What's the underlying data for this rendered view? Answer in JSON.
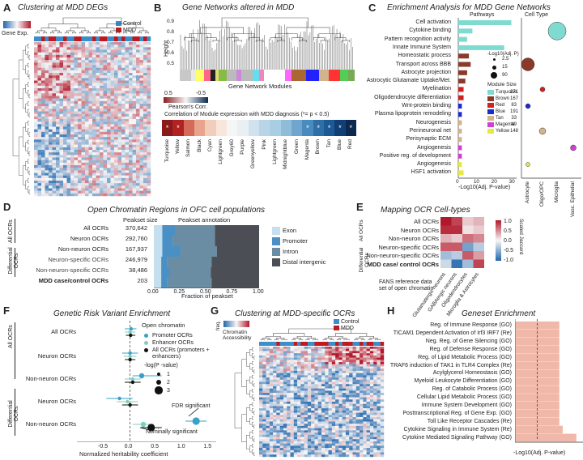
{
  "panels": {
    "A": {
      "letter": "A",
      "title": "Clustering at MDD DEGs",
      "legend_label": "Gene Exp.",
      "groups": [
        "Control",
        "MDD"
      ]
    },
    "B": {
      "letter": "B",
      "title": "Gene Networks altered in MDD",
      "height_label": "Height",
      "height_ticks": [
        "0.9",
        "0.8",
        "0.7",
        "0.6",
        "0.5"
      ],
      "modules_label": "Gene Network Modules",
      "corr_ticks": [
        "0.5",
        "-0.5"
      ],
      "corr_label": "Pearson's Corr.",
      "corr_title": "Correlation of Module expression with MDD diagnosis (*= p < 0.5)",
      "modules": [
        {
          "name": "Turquoise",
          "color": "#8b1a1a",
          "sig": true
        },
        {
          "name": "Yellow",
          "color": "#b22222",
          "sig": true
        },
        {
          "name": "Salmon",
          "color": "#d46a5a",
          "sig": false
        },
        {
          "name": "Black",
          "color": "#e8a48c",
          "sig": false
        },
        {
          "name": "Cyan",
          "color": "#f3cdbb",
          "sig": false
        },
        {
          "name": "Lightgreen",
          "color": "#f7e6dc",
          "sig": false
        },
        {
          "name": "Grey60",
          "color": "#f5f5f5",
          "sig": false
        },
        {
          "name": "Purple",
          "color": "#e8f0f4",
          "sig": false
        },
        {
          "name": "Greenyellow",
          "color": "#cfe2ee",
          "sig": false
        },
        {
          "name": "Pink",
          "color": "#b8d5e8",
          "sig": false
        },
        {
          "name": "Lightgreen",
          "color": "#a9cde3",
          "sig": false
        },
        {
          "name": "Midnightblue",
          "color": "#8fbcd9",
          "sig": false
        },
        {
          "name": "Green",
          "color": "#6ea6cd",
          "sig": false
        },
        {
          "name": "Magenta",
          "color": "#4a8bbf",
          "sig": true
        },
        {
          "name": "Brown",
          "color": "#2f6fa8",
          "sig": true
        },
        {
          "name": "Tan",
          "color": "#1d5a95",
          "sig": true
        },
        {
          "name": "Blue",
          "color": "#123f73",
          "sig": true
        },
        {
          "name": "Red",
          "color": "#0a2850",
          "sig": true
        }
      ]
    },
    "C": {
      "letter": "C",
      "title": "Enrichment Analysis for MDD Gene Networks",
      "col1": "Pathways",
      "col2": "Cell Type",
      "xlabel": "-Log10(Adj. P-value)",
      "xticks": [
        "0",
        "10",
        "20",
        "30"
      ],
      "rows": [
        {
          "label": "Cell activation",
          "module": "Turquoise",
          "value": 30
        },
        {
          "label": "Cytokine binding",
          "module": "Turquoise",
          "value": 8
        },
        {
          "label": "Pattern recognition activity",
          "module": "Turquoise",
          "value": 5
        },
        {
          "label": "Innate Immune System",
          "module": "Turquoise",
          "value": 26
        },
        {
          "label": "Homeostatic process",
          "module": "Brown",
          "value": 6
        },
        {
          "label": "Transport across BBB",
          "module": "Brown",
          "value": 7
        },
        {
          "label": "Astrocyte projection",
          "module": "Brown",
          "value": 5
        },
        {
          "label": "Astrocytic Glutamate Uptake/Met.",
          "module": "Brown",
          "value": 4
        },
        {
          "label": "Myelination",
          "module": "Red",
          "value": 3
        },
        {
          "label": "Oligodendrocyte differentiation",
          "module": "Red",
          "value": 3
        },
        {
          "label": "Wnt-protein binding",
          "module": "Blue",
          "value": 2
        },
        {
          "label": "Plasma lipoprotein remodeling",
          "module": "Blue",
          "value": 2
        },
        {
          "label": "Neurogenesis",
          "module": "Tan",
          "value": 2
        },
        {
          "label": "Perineuronal net",
          "module": "Tan",
          "value": 2
        },
        {
          "label": "Perisynaptic ECM",
          "module": "Tan",
          "value": 2
        },
        {
          "label": "Angiogenesis",
          "module": "Magenta",
          "value": 2
        },
        {
          "label": "Positive reg. of development",
          "module": "Magenta",
          "value": 2
        },
        {
          "label": "Angiogenesis",
          "module": "Yellow",
          "value": 2
        },
        {
          "label": "HSF1 activation",
          "module": "Yellow",
          "value": 3
        }
      ],
      "size_legend_title": "-Log10(Adj. P)",
      "size_legend": [
        "2.5",
        "15",
        "90"
      ],
      "module_size_title": "Module Size",
      "module_sizes": [
        {
          "name": "Turquoise",
          "color": "#7fdbd0",
          "size": "271"
        },
        {
          "name": "Brown",
          "color": "#8b3a2a",
          "size": "167"
        },
        {
          "name": "Red",
          "color": "#d02020",
          "size": "83"
        },
        {
          "name": "Blue",
          "color": "#1a2ad0",
          "size": "191"
        },
        {
          "name": "Tan",
          "color": "#d2b48c",
          "size": "33"
        },
        {
          "name": "Magenta",
          "color": "#d040d0",
          "size": "49"
        },
        {
          "name": "Yellow",
          "color": "#e8e840",
          "size": "148"
        }
      ],
      "cell_types": [
        "Astrocyte",
        "Oligo/OPC",
        "Microglia",
        "Vasc. Epithelial"
      ]
    },
    "D": {
      "letter": "D",
      "title": "Open Chromatin Regions in OFC cell populations",
      "col1": "Peakset size",
      "col2": "Peakset annotation",
      "group_all": "All OCRs",
      "group_diff": "Differential OCRs",
      "xlabel": "Fraction of peakset",
      "xticks": [
        "0.00",
        "0.25",
        "0.50",
        "0.75",
        "1.00"
      ],
      "rows": [
        {
          "label": "All OCRs",
          "size": "370,642",
          "exon": 0.08,
          "promoter": 0.12,
          "intron": 0.38,
          "distal": 0.42
        },
        {
          "label": "Neuron OCRs",
          "size": "292,760",
          "exon": 0.08,
          "promoter": 0.1,
          "intron": 0.4,
          "distal": 0.42
        },
        {
          "label": "Non-neuron OCRs",
          "size": "167,937",
          "exon": 0.08,
          "promoter": 0.17,
          "intron": 0.35,
          "distal": 0.4
        },
        {
          "label": "Neuron-specific OCRs",
          "size": "246,979",
          "exon": 0.07,
          "promoter": 0.06,
          "intron": 0.42,
          "distal": 0.45
        },
        {
          "label": "Non-neuron-specific OCRs",
          "size": "38,486",
          "exon": 0.07,
          "promoter": 0.08,
          "intron": 0.39,
          "distal": 0.46
        },
        {
          "label": "MDD case/control OCRs",
          "size": "203",
          "exon": 0.07,
          "promoter": 0.06,
          "intron": 0.42,
          "distal": 0.45
        }
      ],
      "legend": [
        {
          "name": "Exon",
          "color": "#c6dfee"
        },
        {
          "name": "Promoter",
          "color": "#4a90c4"
        },
        {
          "name": "Intron",
          "color": "#6b8da3"
        },
        {
          "name": "Distal intergenic",
          "color": "#4b4f55"
        }
      ]
    },
    "E": {
      "letter": "E",
      "title": "Mapping OCR Cell-types",
      "group_all": "All OCRs",
      "group_diff": "Differential OCRs",
      "rows": [
        "All OCRs",
        "Neuron OCRs",
        "Non-neuron OCRs",
        "Neuron-specific OCRs",
        "Non-neuron-specific OCRs",
        "MDD case/ control OCRs"
      ],
      "cols": [
        "Glutamatergic neurons",
        "GABAergic neurons",
        "Oligodendrocytes",
        "Microglia & Astrocytes"
      ],
      "cells": [
        [
          1.0,
          0.8,
          0.2,
          0.3
        ],
        [
          0.9,
          0.9,
          0.1,
          0.2
        ],
        [
          0.3,
          0.2,
          0.6,
          0.5
        ],
        [
          0.7,
          0.7,
          -0.6,
          -0.3
        ],
        [
          -0.4,
          -0.3,
          0.7,
          0.4
        ],
        [
          -0.2,
          -0.9,
          -0.4,
          0.8
        ]
      ],
      "scale_label": "Scaled Jaccard",
      "scale_ticks": [
        "1.0",
        "0.5",
        "0.0",
        "-0.5",
        "-1.0"
      ],
      "fans_label": "FANS reference data set of open chromatin"
    },
    "F": {
      "letter": "F",
      "title": "Genetic Risk Variant Enrichment",
      "legend_title": "Open chromatin",
      "legend": [
        "Promoter OCRs",
        "Enhancer OCRs",
        "All OCRs (promoters + enhancers)"
      ],
      "size_title": "-log(P -value)",
      "sizes": [
        "1",
        "2",
        "3"
      ],
      "group_all": "All OCRs",
      "group_diff": "Differential OCRs",
      "row_labels": [
        "All OCRs",
        "Neuron OCRs",
        "Non-neuron OCRs",
        "Neuron OCRs",
        "Non-neuron OCRs"
      ],
      "fdr_label": "FDR significant",
      "nominal_label": "Nominally significant",
      "xlabel": "Normalized heritability coefficient",
      "xticks": [
        "-0.5",
        "0.0",
        "0.5",
        "1.0",
        "1.5"
      ],
      "points": [
        {
          "row": 0,
          "type": "promoter",
          "x": 0.02,
          "lo": -0.1,
          "hi": 0.12,
          "size": 1
        },
        {
          "row": 0,
          "type": "enhancer",
          "x": 0.0,
          "lo": -0.1,
          "hi": 0.1,
          "size": 1
        },
        {
          "row": 0,
          "type": "all",
          "x": 0.01,
          "lo": -0.08,
          "hi": 0.1,
          "size": 1
        },
        {
          "row": 1,
          "type": "promoter",
          "x": 0.0,
          "lo": -0.15,
          "hi": 0.15,
          "size": 1
        },
        {
          "row": 1,
          "type": "enhancer",
          "x": 0.0,
          "lo": -0.12,
          "hi": 0.12,
          "size": 1
        },
        {
          "row": 1,
          "type": "all",
          "x": 0.0,
          "lo": -0.1,
          "hi": 0.1,
          "size": 1
        },
        {
          "row": 2,
          "type": "promoter",
          "x": 0.22,
          "lo": 0.05,
          "hi": 0.6,
          "size": 2
        },
        {
          "row": 2,
          "type": "enhancer",
          "x": 0.05,
          "lo": -0.1,
          "hi": 0.2,
          "size": 1
        },
        {
          "row": 2,
          "type": "all",
          "x": 0.05,
          "lo": -0.1,
          "hi": 0.2,
          "size": 1
        },
        {
          "row": 3,
          "type": "promoter",
          "x": -0.2,
          "lo": -0.45,
          "hi": 0.05,
          "size": 1
        },
        {
          "row": 3,
          "type": "enhancer",
          "x": -0.05,
          "lo": -0.25,
          "hi": 0.15,
          "size": 1
        },
        {
          "row": 3,
          "type": "all",
          "x": 0.0,
          "lo": -0.15,
          "hi": 0.15,
          "size": 1
        },
        {
          "row": 4,
          "type": "promoter",
          "x": 1.25,
          "lo": 1.05,
          "hi": 1.45,
          "size": 3
        },
        {
          "row": 4,
          "type": "enhancer",
          "x": 0.25,
          "lo": 0.05,
          "hi": 0.45,
          "size": 2
        },
        {
          "row": 4,
          "type": "all",
          "x": 0.4,
          "lo": 0.2,
          "hi": 0.6,
          "size": 3
        }
      ]
    },
    "G": {
      "letter": "G",
      "title": "Clustering at MDD-specific OCRs",
      "legend_label": "Chromatin Accessibility",
      "freq_label": "freq.",
      "groups": [
        "Control",
        "MDD"
      ]
    },
    "H": {
      "letter": "H",
      "title": "Geneset Enrichment",
      "xlabel": "-Log10(Adj. P-value)",
      "rows": [
        {
          "label": "Reg. of Immune Response (GO)",
          "value": 2.6
        },
        {
          "label": "TICAM1 Dependent Activation of Irf3 IRF7 (Re)",
          "value": 2.6
        },
        {
          "label": "Neg. Reg. of Gene Silencing (GO)",
          "value": 2.6
        },
        {
          "label": "Reg. of Defense Response (GO)",
          "value": 2.6
        },
        {
          "label": "Reg. of Lipid Metabolic Process (GO)",
          "value": 2.6
        },
        {
          "label": "TRAF6 induction of TAK1 in TLR4 Complex (Re)",
          "value": 2.6
        },
        {
          "label": "Acylglycerol Homeostasis (GO)",
          "value": 2.6
        },
        {
          "label": "Myeloid Leukocyte Differentiation (GO)",
          "value": 2.6
        },
        {
          "label": "Reg. of Catabolic Process (GO)",
          "value": 2.6
        },
        {
          "label": "Cellular Lipid Metabolic Process (GO)",
          "value": 2.6
        },
        {
          "label": "Immune System Development (GO)",
          "value": 2.6
        },
        {
          "label": "Posttranscriptional Reg. of Gene Exp. (GO)",
          "value": 2.6
        },
        {
          "label": "Toll Like Receptor Cascades (Re)",
          "value": 2.6
        },
        {
          "label": "Cytokine Signaling in Immune System (Re)",
          "value": 2.8
        },
        {
          "label": "Cytokine Mediated Signaling Pathway (GO)",
          "value": 3.6
        }
      ]
    }
  },
  "colors": {
    "control": "#3a8fc8",
    "mdd": "#c0181e",
    "bar_h": "#f0b8a8",
    "cyan_bar": "#7fdbd0"
  }
}
